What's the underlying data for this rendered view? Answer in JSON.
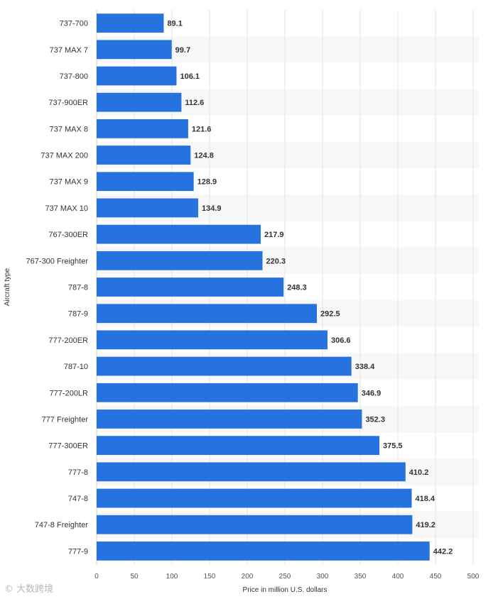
{
  "chart_data": {
    "type": "bar",
    "orientation": "horizontal",
    "categories": [
      "737-700",
      "737 MAX 7",
      "737-800",
      "737-900ER",
      "737 MAX 8",
      "737 MAX 200",
      "737 MAX 9",
      "737 MAX 10",
      "767-300ER",
      "767-300 Freighter",
      "787-8",
      "787-9",
      "777-200ER",
      "787-10",
      "777-200LR",
      "777 Freighter",
      "777-300ER",
      "777-8",
      "747-8",
      "747-8 Freighter",
      "777-9"
    ],
    "values": [
      89.1,
      99.7,
      106.1,
      112.6,
      121.6,
      124.8,
      128.9,
      134.9,
      217.9,
      220.3,
      248.3,
      292.5,
      306.6,
      338.4,
      346.9,
      352.3,
      375.5,
      410.2,
      418.4,
      419.2,
      442.2
    ],
    "value_labels": [
      "89.1",
      "99.7",
      "106.1",
      "112.6",
      "121.6",
      "124.8",
      "128.9",
      "134.9",
      "217.9",
      "220.3",
      "248.3",
      "292.5",
      "306.6",
      "338.4",
      "346.9",
      "352.3",
      "375.5",
      "410.2",
      "418.4",
      "419.2",
      "442.2"
    ],
    "xlabel": "Price in million U.S. dollars",
    "ylabel": "Aircraft type",
    "xlim": [
      0,
      500
    ],
    "xticks": [
      0,
      50,
      100,
      150,
      200,
      250,
      300,
      350,
      400,
      450,
      500
    ],
    "grid": true,
    "bar_color": "#2673e0",
    "stripe_color": "#f7f7f7"
  },
  "watermark": "© 大数跨境"
}
